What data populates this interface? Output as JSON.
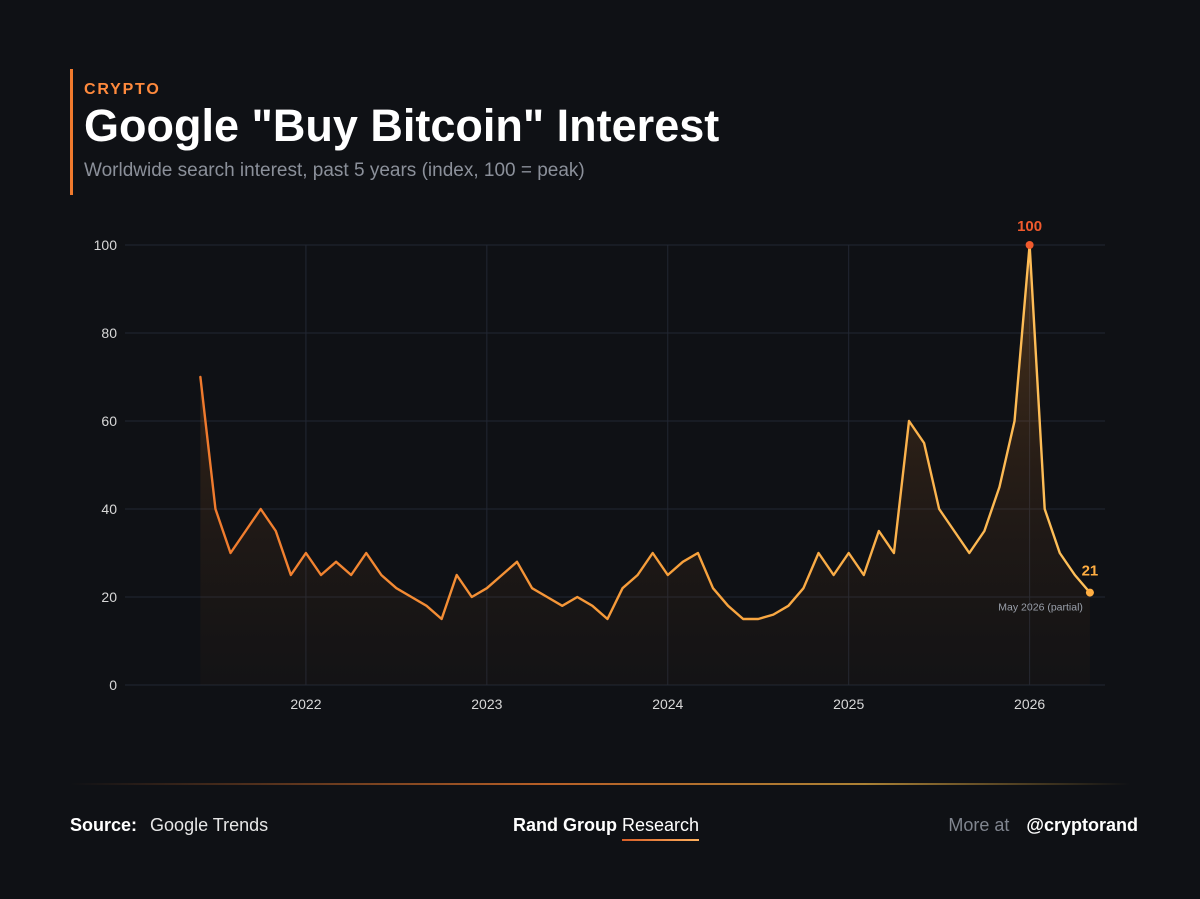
{
  "header": {
    "kicker": "CRYPTO",
    "title": "Google \"Buy Bitcoin\" Interest",
    "subtitle": "Worldwide search interest, past 5 years (index, 100 = peak)"
  },
  "chart_data": {
    "type": "area",
    "title": "Google \"Buy Bitcoin\" Interest",
    "subtitle": "Worldwide search interest, past 5 years (index, 100 = peak)",
    "ylim": [
      0,
      100
    ],
    "yticks": [
      0,
      20,
      40,
      60,
      80,
      100
    ],
    "xticks": [
      "2022",
      "2023",
      "2024",
      "2025",
      "2026"
    ],
    "x_range": [
      "2021-06",
      "2026-05"
    ],
    "grid": true,
    "legend": "none",
    "x": [
      "2021-06",
      "2021-07",
      "2021-08",
      "2021-09",
      "2021-10",
      "2021-11",
      "2021-12",
      "2022-01",
      "2022-02",
      "2022-03",
      "2022-04",
      "2022-05",
      "2022-06",
      "2022-07",
      "2022-08",
      "2022-09",
      "2022-10",
      "2022-11",
      "2022-12",
      "2023-01",
      "2023-02",
      "2023-03",
      "2023-04",
      "2023-05",
      "2023-06",
      "2023-07",
      "2023-08",
      "2023-09",
      "2023-10",
      "2023-11",
      "2023-12",
      "2024-01",
      "2024-02",
      "2024-03",
      "2024-04",
      "2024-05",
      "2024-06",
      "2024-07",
      "2024-08",
      "2024-09",
      "2024-10",
      "2024-11",
      "2024-12",
      "2025-01",
      "2025-02",
      "2025-03",
      "2025-04",
      "2025-05",
      "2025-06",
      "2025-07",
      "2025-08",
      "2025-09",
      "2025-10",
      "2025-11",
      "2025-12",
      "2026-01",
      "2026-02",
      "2026-03",
      "2026-04",
      "2026-05"
    ],
    "values": [
      70,
      40,
      30,
      35,
      40,
      35,
      25,
      30,
      25,
      28,
      25,
      30,
      25,
      22,
      20,
      18,
      15,
      25,
      20,
      22,
      25,
      28,
      22,
      20,
      18,
      20,
      18,
      15,
      22,
      25,
      30,
      25,
      28,
      30,
      22,
      18,
      15,
      15,
      16,
      18,
      22,
      30,
      25,
      30,
      25,
      35,
      30,
      60,
      55,
      40,
      35,
      30,
      35,
      45,
      60,
      100,
      40,
      30,
      25,
      21
    ],
    "annotations": [
      {
        "x": "2026-01",
        "text": "100"
      },
      {
        "x": "2026-05",
        "text": "21"
      },
      {
        "x": "2026-05",
        "text": "May 2026 (partial)"
      }
    ],
    "colors": {
      "line_start": "#f07a2d",
      "line_end": "#ffc15a",
      "peak_marker": "#f05a2d",
      "last_marker": "#ffae42",
      "grid": "#222733",
      "tick_text": "#d8d8d8",
      "note_text": "#9aa0aa"
    }
  },
  "footer": {
    "source_label": "Source:",
    "source_value": "Google Trends",
    "brand": "Rand Group",
    "brand_suffix": "Research",
    "more_label": "More at",
    "handle": "@cryptorand"
  },
  "colors": {
    "background": "#0f1115",
    "accent": "#f07a2d",
    "title": "#ffffff",
    "subtitle": "#8b909a"
  }
}
